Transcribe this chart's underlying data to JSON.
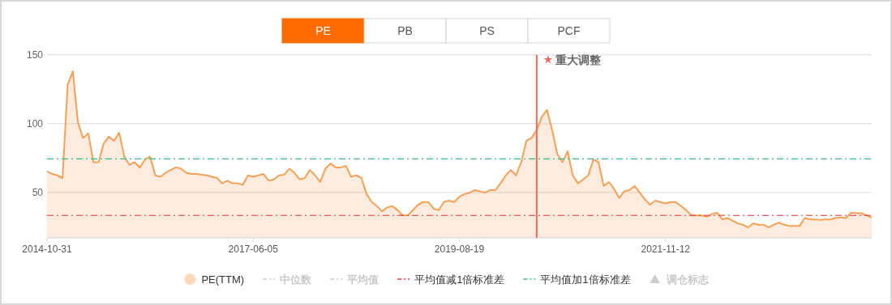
{
  "chart_data": {
    "type": "area",
    "annotations": [
      "PE",
      "PB",
      "PS",
      "PCF",
      "重大调整"
    ],
    "categories": [
      "2014-10-31",
      null,
      null,
      null,
      null,
      null,
      null,
      null,
      null,
      null,
      null,
      null,
      null,
      null,
      null,
      null,
      null,
      null,
      null,
      null,
      null,
      null,
      null,
      null,
      null,
      null,
      null,
      null,
      null,
      null,
      null,
      null,
      null,
      null,
      null,
      null,
      null,
      null,
      null,
      null,
      "2017-06-05",
      null,
      null,
      null,
      null,
      null,
      null,
      null,
      null,
      null,
      null,
      null,
      null,
      null,
      null,
      null,
      null,
      null,
      null,
      null,
      null,
      null,
      null,
      null,
      null,
      null,
      null,
      null,
      null,
      null,
      null,
      null,
      null,
      null,
      null,
      null,
      null,
      null,
      null,
      null,
      "2019-08-19",
      null,
      null,
      null,
      null,
      null,
      null,
      null,
      null,
      null,
      null,
      null,
      null,
      null,
      null,
      null,
      null,
      null,
      null,
      null,
      null,
      null,
      null,
      null,
      null,
      null,
      null,
      null,
      null,
      null,
      null,
      null,
      null,
      null,
      null,
      null,
      null,
      null,
      null,
      null,
      "2021-11-12",
      null,
      null,
      null,
      null,
      null,
      null,
      null,
      null,
      null,
      null,
      null,
      null,
      null,
      null,
      null,
      null,
      null,
      null,
      null,
      null,
      null,
      null,
      null,
      null,
      null,
      null,
      null,
      null,
      null,
      null,
      null,
      null,
      null,
      null,
      null,
      null,
      null,
      null,
      null,
      null
    ],
    "series": [
      {
        "name": "PE(TTM)",
        "color": "#f5a057",
        "values": [
          65.3,
          63.4,
          62.4,
          60.5,
          128,
          138,
          101,
          89.5,
          93,
          72,
          72,
          85.7,
          90.5,
          87.6,
          93.4,
          76,
          70,
          72,
          68,
          74,
          76,
          62.4,
          61.4,
          64.3,
          66.3,
          68.2,
          67.2,
          64.3,
          63.4,
          63.4,
          62.8,
          62.4,
          61.4,
          60.5,
          56.6,
          58.5,
          56.6,
          56.6,
          55.6,
          62.4,
          61.4,
          62.4,
          63.4,
          58.5,
          59.5,
          62.4,
          62.8,
          67.2,
          64.3,
          59.5,
          60.5,
          66.3,
          62.4,
          57.6,
          67.2,
          71,
          68.2,
          68.2,
          69.2,
          61.4,
          62.4,
          60.5,
          48.8,
          43,
          40.1,
          36.2,
          39.1,
          40.1,
          37.2,
          33.3,
          33.3,
          37.2,
          41.1,
          43,
          43,
          38.2,
          37.2,
          43,
          44,
          43,
          46.9,
          48.8,
          49.8,
          51.7,
          50.8,
          49.8,
          51.7,
          51.7,
          56.6,
          62.4,
          66.3,
          62.4,
          72,
          87.6,
          89.5,
          95.3,
          105,
          109.9,
          95.3,
          77.8,
          72,
          79.8,
          62.4,
          56.6,
          59.5,
          62.4,
          74,
          72,
          54.7,
          57.6,
          52.7,
          46,
          50.8,
          51.7,
          54.7,
          49.8,
          44.9,
          41.1,
          44,
          43,
          42,
          43,
          43,
          40.1,
          37.2,
          33.3,
          33.3,
          33.3,
          32.4,
          34.3,
          35.3,
          30.4,
          31.4,
          29.5,
          27.5,
          26.6,
          24.6,
          27.5,
          26.6,
          26.6,
          24.6,
          26.6,
          28,
          26.6,
          25.6,
          25.6,
          25.6,
          31.4,
          30.4,
          30.4,
          30,
          30.4,
          30.4,
          31.4,
          31.8,
          31.4,
          35.3,
          34.9,
          34.9,
          33.3,
          31.8
        ]
      },
      {
        "name": "中位数",
        "type": "line",
        "color": "#cccccc",
        "values": [
          null,
          null,
          null,
          null,
          null,
          null,
          null,
          null,
          null,
          null,
          null,
          null,
          null,
          null,
          null,
          null,
          null,
          null,
          null,
          null,
          null,
          null,
          null,
          null,
          null,
          null,
          null,
          null,
          null,
          null,
          null,
          null,
          null,
          null,
          null,
          null,
          null,
          null,
          null,
          null,
          null,
          null,
          null,
          null,
          null,
          null,
          null,
          null,
          null,
          null,
          null,
          null,
          null,
          null,
          null,
          null,
          null,
          null,
          null,
          null,
          null,
          null,
          null,
          null,
          null,
          null,
          null,
          null,
          null,
          null,
          null,
          null,
          null,
          null,
          null,
          null,
          null,
          null,
          null,
          null,
          null,
          null,
          null,
          null,
          null,
          null,
          null,
          null,
          null,
          null,
          null,
          null,
          null,
          null,
          null,
          null,
          null,
          null,
          null,
          null,
          null,
          null,
          null,
          null,
          null,
          null,
          null,
          null,
          null,
          null,
          null,
          null,
          null,
          null,
          null,
          null,
          null,
          null,
          null,
          null,
          null,
          null,
          null,
          null,
          null,
          null,
          null,
          null,
          null,
          null,
          null,
          null,
          null,
          null,
          null,
          null,
          null,
          null,
          null,
          null,
          null,
          null,
          null,
          null,
          null,
          null,
          null,
          null,
          null,
          null,
          null,
          null,
          null,
          null,
          null,
          null,
          null,
          null,
          null,
          null,
          null
        ]
      },
      {
        "name": "平均值",
        "type": "line",
        "color": "#cccccc",
        "values": [
          null,
          null,
          null,
          null,
          null,
          null,
          null,
          null,
          null,
          null,
          null,
          null,
          null,
          null,
          null,
          null,
          null,
          null,
          null,
          null,
          null,
          null,
          null,
          null,
          null,
          null,
          null,
          null,
          null,
          null,
          null,
          null,
          null,
          null,
          null,
          null,
          null,
          null,
          null,
          null,
          null,
          null,
          null,
          null,
          null,
          null,
          null,
          null,
          null,
          null,
          null,
          null,
          null,
          null,
          null,
          null,
          null,
          null,
          null,
          null,
          null,
          null,
          null,
          null,
          null,
          null,
          null,
          null,
          null,
          null,
          null,
          null,
          null,
          null,
          null,
          null,
          null,
          null,
          null,
          null,
          null,
          null,
          null,
          null,
          null,
          null,
          null,
          null,
          null,
          null,
          null,
          null,
          null,
          null,
          null,
          null,
          null,
          null,
          null,
          null,
          null,
          null,
          null,
          null,
          null,
          null,
          null,
          null,
          null,
          null,
          null,
          null,
          null,
          null,
          null,
          null,
          null,
          null,
          null,
          null,
          null,
          null,
          null,
          null,
          null,
          null,
          null,
          null,
          null,
          null,
          null,
          null,
          null,
          null,
          null,
          null,
          null,
          null,
          null,
          null,
          null,
          null,
          null,
          null,
          null,
          null,
          null,
          null,
          null,
          null,
          null,
          null,
          null,
          null,
          null,
          null,
          null,
          null,
          null,
          null,
          null
        ]
      },
      {
        "name": "调仓标志",
        "type": "scatter",
        "marker": "triangle",
        "color": "#cccccc",
        "values": [
          null,
          null,
          null,
          null,
          null,
          null,
          null,
          null,
          null,
          null,
          null,
          null,
          null,
          null,
          null,
          null,
          null,
          null,
          null,
          null,
          null,
          null,
          null,
          null,
          null,
          null,
          null,
          null,
          null,
          null,
          null,
          null,
          null,
          null,
          null,
          null,
          null,
          null,
          null,
          null,
          null,
          null,
          null,
          null,
          null,
          null,
          null,
          null,
          null,
          null,
          null,
          null,
          null,
          null,
          null,
          null,
          null,
          null,
          null,
          null,
          null,
          null,
          null,
          null,
          null,
          null,
          null,
          null,
          null,
          null,
          null,
          null,
          null,
          null,
          null,
          null,
          null,
          null,
          null,
          null,
          null,
          null,
          null,
          null,
          null,
          null,
          null,
          null,
          null,
          null,
          null,
          null,
          null,
          null,
          null,
          null,
          null,
          null,
          null,
          null,
          null,
          null,
          null,
          null,
          null,
          null,
          null,
          null,
          null,
          null,
          null,
          null,
          null,
          null,
          null,
          null,
          null,
          null,
          null,
          null,
          null,
          null,
          null,
          null,
          null,
          null,
          null,
          null,
          null,
          null,
          null,
          null,
          null,
          null,
          null,
          null,
          null,
          null,
          null,
          null,
          null,
          null,
          null,
          null,
          null,
          null,
          null,
          null,
          null,
          null,
          null,
          null,
          null,
          null,
          null,
          null,
          null,
          null,
          null,
          null,
          null
        ]
      }
    ],
    "ylim": [
      17,
      150
    ],
    "yticks": [
      50,
      100,
      150
    ],
    "grid": "y",
    "legend": "bottom",
    "ref_lines": [
      {
        "axis": "y",
        "value": 33.3,
        "label": "平均值减1倍标准差",
        "color": "#e8323c",
        "line_style": "dashdot"
      },
      {
        "axis": "y",
        "value": 74.4,
        "label": "平均值加1倍标准差",
        "color": "#3cb88a",
        "line_style": "dashdot"
      }
    ]
  }
}
